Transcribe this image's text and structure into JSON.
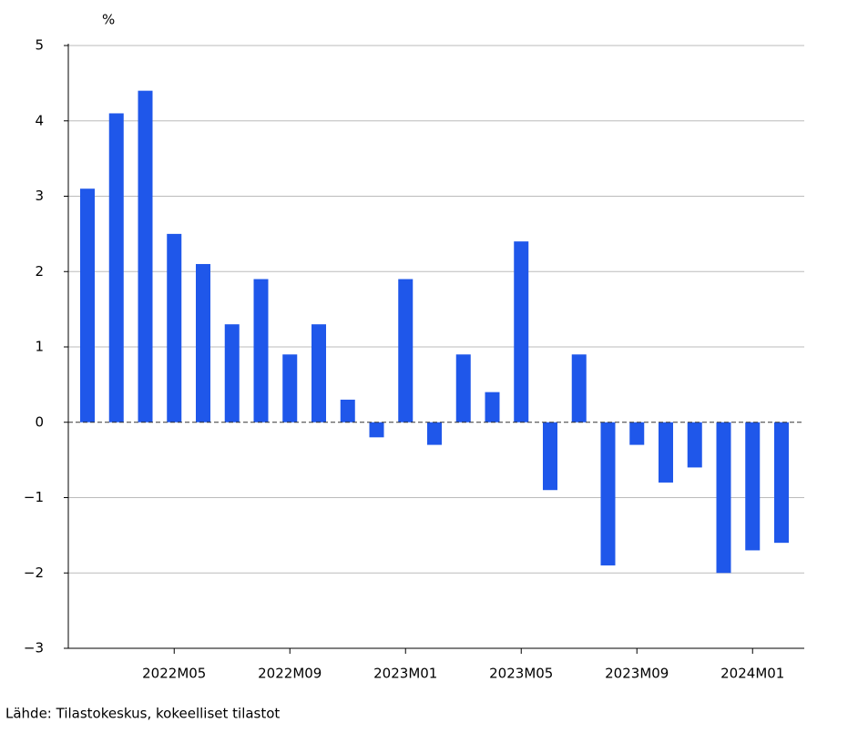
{
  "chart_data": {
    "type": "bar",
    "unit_label": "%",
    "source": "Lähde: Tilastokeskus, kokeelliset tilastot",
    "categories": [
      null,
      null,
      null,
      "2022M05",
      null,
      null,
      null,
      "2022M09",
      null,
      null,
      null,
      "2023M01",
      null,
      null,
      null,
      "2023M05",
      null,
      null,
      null,
      "2023M09",
      null,
      null,
      null,
      "2024M01",
      null
    ],
    "values": [
      3.1,
      4.1,
      4.4,
      2.5,
      2.1,
      1.3,
      1.9,
      0.9,
      1.3,
      0.3,
      -0.2,
      1.9,
      -0.3,
      0.9,
      0.4,
      2.4,
      -0.9,
      0.9,
      -1.9,
      -0.3,
      -0.8,
      -0.6,
      -2.0,
      -1.7,
      -1.6
    ],
    "color": "#1f57ea",
    "ylim": [
      -3,
      5
    ],
    "yticks": [
      {
        "value": -3,
        "label": "−3"
      },
      {
        "value": -2,
        "label": "−2"
      },
      {
        "value": -1,
        "label": "−1"
      },
      0,
      1,
      2,
      3,
      4,
      5
    ],
    "grid": true
  }
}
